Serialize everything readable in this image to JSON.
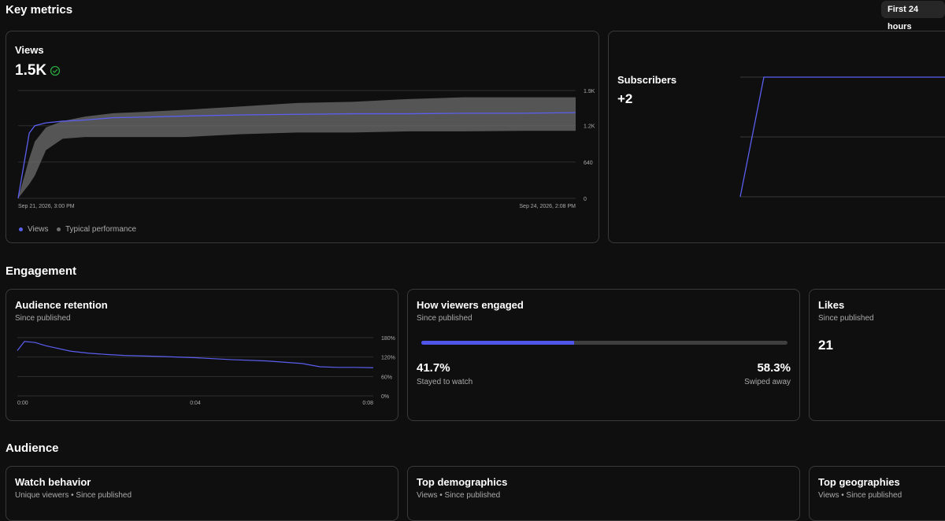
{
  "header": {
    "key_metrics_title": "Key metrics",
    "time_range": "First 24 hours"
  },
  "views": {
    "title": "Views",
    "value": "1.5K",
    "check_icon": "check-circle-icon",
    "legend_views": "Views",
    "legend_typical": "Typical performance",
    "colors": {
      "views": "#5b5ff0",
      "typical": "#6e6e6e"
    }
  },
  "subscribers": {
    "title": "Subscribers",
    "value": "+2"
  },
  "engagement": {
    "title": "Engagement",
    "retention": {
      "title": "Audience retention",
      "subtitle": "Since published"
    },
    "how_engaged": {
      "title": "How viewers engaged",
      "subtitle": "Since published",
      "stayed_pct": "41.7%",
      "stayed_label": "Stayed to watch",
      "stayed_fraction": 0.417,
      "swiped_pct": "58.3%",
      "swiped_label": "Swiped away"
    },
    "likes": {
      "title": "Likes",
      "subtitle": "Since published",
      "value": "21"
    }
  },
  "audience": {
    "title": "Audience",
    "watch_behavior": {
      "title": "Watch behavior",
      "subtitle": "Unique viewers • Since published"
    },
    "top_demographics": {
      "title": "Top demographics",
      "subtitle": "Views • Since published"
    },
    "top_geographies": {
      "title": "Top geographies",
      "subtitle": "Views • Since published"
    }
  },
  "chart_data": [
    {
      "type": "line",
      "name": "views",
      "x_start_label": "Sep 21, 2026, 3:00 PM",
      "x_end_label": "Sep 24, 2026, 2:08 PM",
      "y_ticks": [
        "0",
        "640",
        "1.2K",
        "1.9K"
      ],
      "ylim": [
        0,
        1900
      ],
      "x": [
        0,
        0.02,
        0.03,
        0.05,
        0.08,
        0.12,
        0.17,
        0.22,
        0.3,
        0.4,
        0.5,
        0.6,
        0.7,
        0.8,
        0.9,
        1.0
      ],
      "series": [
        {
          "name": "Views",
          "values": [
            0,
            1150,
            1280,
            1330,
            1360,
            1380,
            1420,
            1430,
            1450,
            1470,
            1480,
            1490,
            1490,
            1500,
            1500,
            1510
          ]
        }
      ],
      "band": {
        "name": "Typical performance",
        "upper": [
          0,
          700,
          1000,
          1250,
          1360,
          1440,
          1500,
          1520,
          1560,
          1620,
          1680,
          1700,
          1750,
          1780,
          1780,
          1780
        ],
        "lower": [
          0,
          250,
          400,
          850,
          1050,
          1080,
          1080,
          1080,
          1080,
          1130,
          1160,
          1160,
          1180,
          1180,
          1190,
          1190
        ]
      }
    },
    {
      "type": "line",
      "name": "subscribers",
      "ylim": [
        0,
        2
      ],
      "x": [
        0,
        0.06,
        1.0
      ],
      "series": [
        {
          "name": "Subscribers",
          "values": [
            0,
            2,
            2
          ]
        }
      ]
    },
    {
      "type": "line",
      "name": "retention",
      "x_ticks": [
        "0:00",
        "0:04",
        "0:08"
      ],
      "y_ticks": [
        "0%",
        "60%",
        "120%",
        "180%"
      ],
      "ylim": [
        0,
        180
      ],
      "x": [
        0,
        0.02,
        0.05,
        0.08,
        0.1,
        0.15,
        0.2,
        0.25,
        0.3,
        0.4,
        0.5,
        0.6,
        0.7,
        0.8,
        0.85,
        0.9,
        0.95,
        1.0
      ],
      "series": [
        {
          "name": "Retention",
          "values": [
            140,
            168,
            165,
            155,
            150,
            138,
            132,
            128,
            125,
            122,
            118,
            112,
            108,
            100,
            90,
            88,
            88,
            87
          ]
        }
      ]
    }
  ]
}
